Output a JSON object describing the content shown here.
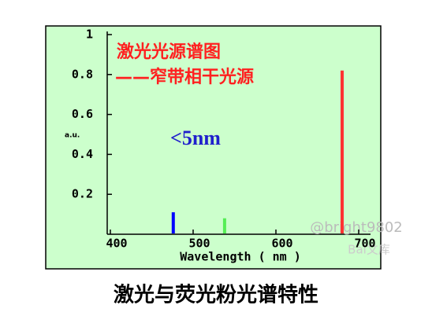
{
  "chart_data": {
    "type": "spectrum",
    "annotations": [
      "激光光源谱图",
      "——窄带相干光源",
      "<5nm"
    ],
    "ylabel": "a.u.",
    "xlabel": "Wavelength ( nm )",
    "caption": "激光与荧光粉光谱特性",
    "watermark": [
      "@bright9802",
      "Bai文库"
    ],
    "background": "#ccffcc",
    "lines": [
      {
        "x": 476,
        "value": 0.11,
        "color": "#0000ff"
      },
      {
        "x": 538,
        "value": 0.08,
        "color": "#55ee55"
      },
      {
        "x": 680,
        "value": 0.82,
        "color": "#ff3333"
      }
    ],
    "xlim": [
      400,
      700
    ],
    "xticks": [
      400,
      500,
      600,
      700
    ],
    "ylim": [
      0,
      1
    ],
    "yticks": [
      0.2,
      0.4,
      0.6,
      0.8,
      1
    ]
  }
}
